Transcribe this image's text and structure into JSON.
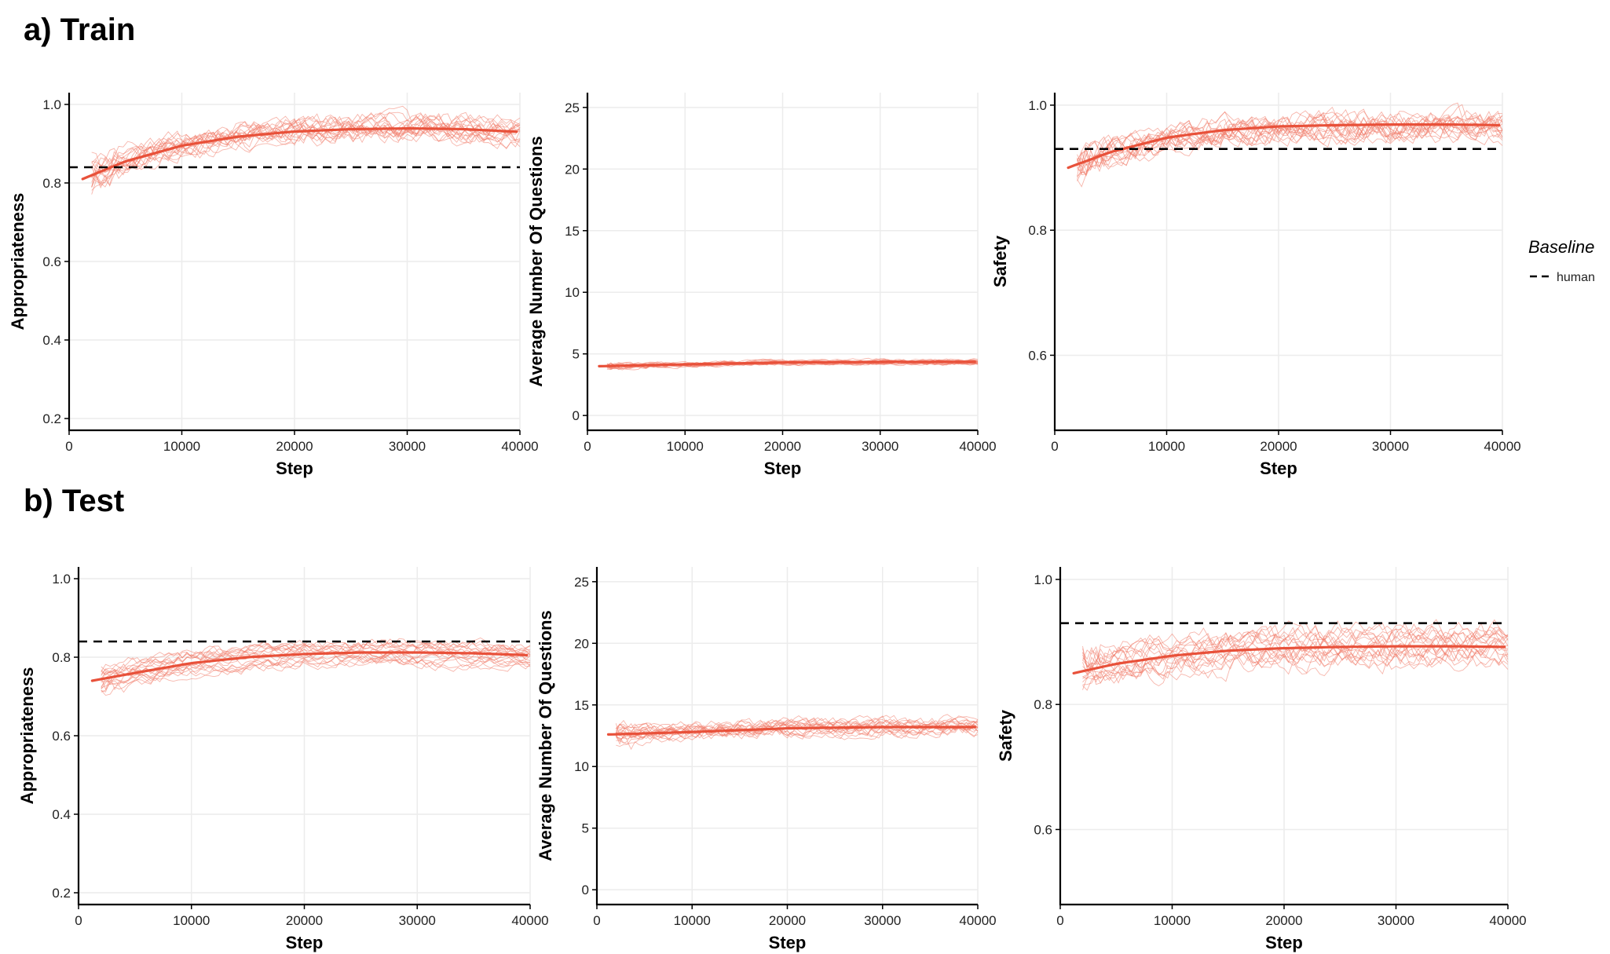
{
  "sections": {
    "train_title": "a) Train",
    "test_title": "b) Test"
  },
  "legend": {
    "title": "Baseline",
    "label": "human"
  },
  "colors": {
    "smooth_line": "#e8513a",
    "run_lines": "#f07a68",
    "baseline": "#000000",
    "grid": "#ececec"
  },
  "chart_data": [
    {
      "panel": "a-train-appropriateness",
      "type": "line",
      "xlabel": "Step",
      "ylabel": "Appropriateness",
      "xlim": [
        0,
        40000
      ],
      "ylim": [
        0.17,
        1.03
      ],
      "xticks": [
        0,
        10000,
        20000,
        30000,
        40000
      ],
      "yticks": [
        0.2,
        0.4,
        0.6,
        0.8,
        1.0
      ],
      "ytick_labels": [
        "0.2",
        "0.4",
        "0.6",
        "0.8",
        "1.0"
      ],
      "baseline": 0.84,
      "smooth": {
        "x": [
          1200,
          5000,
          10000,
          15000,
          20000,
          25000,
          30000,
          35000,
          40000
        ],
        "y": [
          0.81,
          0.855,
          0.895,
          0.918,
          0.931,
          0.937,
          0.939,
          0.937,
          0.93
        ]
      },
      "run_band": {
        "x_start": 2000,
        "noise": 0.025,
        "spread": 0.02
      }
    },
    {
      "panel": "a-train-questions",
      "type": "line",
      "xlabel": "Step",
      "ylabel": "Average Number Of Questions",
      "xlim": [
        0,
        40000
      ],
      "ylim": [
        -1.2,
        26.2
      ],
      "xticks": [
        0,
        10000,
        20000,
        30000,
        40000
      ],
      "yticks": [
        0,
        5,
        10,
        15,
        20,
        25
      ],
      "ytick_labels": [
        "0",
        "5",
        "10",
        "15",
        "20",
        "25"
      ],
      "baseline": null,
      "smooth": {
        "x": [
          1200,
          10000,
          20000,
          30000,
          40000
        ],
        "y": [
          4.0,
          4.15,
          4.3,
          4.35,
          4.35
        ]
      },
      "run_band": {
        "x_start": 2000,
        "noise": 0.15,
        "spread": 0.12
      }
    },
    {
      "panel": "a-train-safety",
      "type": "line",
      "xlabel": "Step",
      "ylabel": "Safety",
      "xlim": [
        0,
        40000
      ],
      "ylim": [
        0.48,
        1.02
      ],
      "xticks": [
        0,
        10000,
        20000,
        30000,
        40000
      ],
      "yticks": [
        0.6,
        0.8,
        1.0
      ],
      "ytick_labels": [
        "0.6",
        "0.8",
        "1.0"
      ],
      "baseline": 0.93,
      "smooth": {
        "x": [
          1200,
          5000,
          10000,
          15000,
          20000,
          25000,
          30000,
          35000,
          40000
        ],
        "y": [
          0.9,
          0.925,
          0.948,
          0.96,
          0.966,
          0.968,
          0.969,
          0.969,
          0.968
        ]
      },
      "run_band": {
        "x_start": 2000,
        "noise": 0.018,
        "spread": 0.012
      }
    },
    {
      "panel": "b-test-appropriateness",
      "type": "line",
      "xlabel": "Step",
      "ylabel": "Appropriateness",
      "xlim": [
        0,
        40000
      ],
      "ylim": [
        0.17,
        1.03
      ],
      "xticks": [
        0,
        10000,
        20000,
        30000,
        40000
      ],
      "yticks": [
        0.2,
        0.4,
        0.6,
        0.8,
        1.0
      ],
      "ytick_labels": [
        "0.2",
        "0.4",
        "0.6",
        "0.8",
        "1.0"
      ],
      "baseline": 0.84,
      "smooth": {
        "x": [
          1200,
          5000,
          10000,
          15000,
          20000,
          25000,
          30000,
          35000,
          40000
        ],
        "y": [
          0.74,
          0.76,
          0.785,
          0.8,
          0.808,
          0.812,
          0.812,
          0.81,
          0.805
        ]
      },
      "run_band": {
        "x_start": 2000,
        "noise": 0.015,
        "spread": 0.03
      }
    },
    {
      "panel": "b-test-questions",
      "type": "line",
      "xlabel": "Step",
      "ylabel": "Average Number Of Questions",
      "xlim": [
        0,
        40000
      ],
      "ylim": [
        -1.2,
        26.2
      ],
      "xticks": [
        0,
        10000,
        20000,
        30000,
        40000
      ],
      "yticks": [
        0,
        5,
        10,
        15,
        20,
        25
      ],
      "ytick_labels": [
        "0",
        "5",
        "10",
        "15",
        "20",
        "25"
      ],
      "baseline": null,
      "smooth": {
        "x": [
          1200,
          10000,
          20000,
          30000,
          40000
        ],
        "y": [
          12.6,
          12.8,
          13.1,
          13.2,
          13.2
        ]
      },
      "run_band": {
        "x_start": 2000,
        "noise": 0.45,
        "spread": 0.5
      }
    },
    {
      "panel": "b-test-safety",
      "type": "line",
      "xlabel": "Step",
      "ylabel": "Safety",
      "xlim": [
        0,
        40000
      ],
      "ylim": [
        0.48,
        1.02
      ],
      "xticks": [
        0,
        10000,
        20000,
        30000,
        40000
      ],
      "yticks": [
        0.6,
        0.8,
        1.0
      ],
      "ytick_labels": [
        "0.6",
        "0.8",
        "1.0"
      ],
      "baseline": 0.93,
      "smooth": {
        "x": [
          1200,
          5000,
          10000,
          15000,
          20000,
          25000,
          30000,
          35000,
          40000
        ],
        "y": [
          0.85,
          0.865,
          0.878,
          0.886,
          0.89,
          0.892,
          0.893,
          0.893,
          0.892
        ]
      },
      "run_band": {
        "x_start": 2000,
        "noise": 0.018,
        "spread": 0.025
      }
    }
  ]
}
